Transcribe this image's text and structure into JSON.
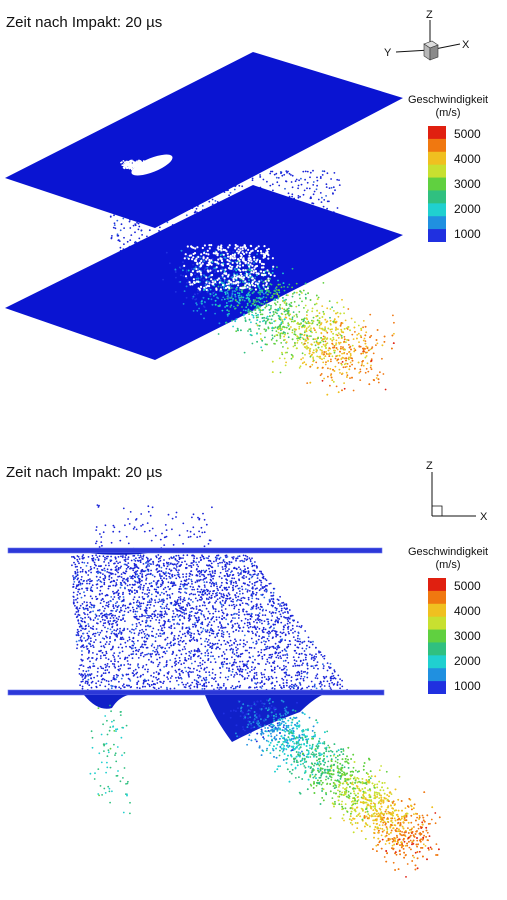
{
  "figures": [
    {
      "id": "isometric",
      "title": "Zeit nach Impakt: 20 µs",
      "axes": {
        "x": "X",
        "y": "Y",
        "z": "Z"
      },
      "legend": {
        "title": "Geschwindigkeit",
        "unit": "(m/s)",
        "ticks": [
          "5000",
          "4000",
          "3000",
          "2000",
          "1000"
        ]
      }
    },
    {
      "id": "side",
      "title": "Zeit nach Impakt: 20 µs",
      "axes": {
        "x": "X",
        "z": "Z"
      },
      "legend": {
        "title": "Geschwindigkeit",
        "unit": "(m/s)",
        "ticks": [
          "5000",
          "4000",
          "3000",
          "2000",
          "1000"
        ]
      }
    }
  ],
  "colors": {
    "plate": "#0a14d2",
    "plate_edge": "#3a46e8",
    "scale": [
      "#e02010",
      "#f07810",
      "#f0c020",
      "#c8e030",
      "#60d040",
      "#30c080",
      "#20d0d0",
      "#2090e0",
      "#2030e0"
    ]
  }
}
